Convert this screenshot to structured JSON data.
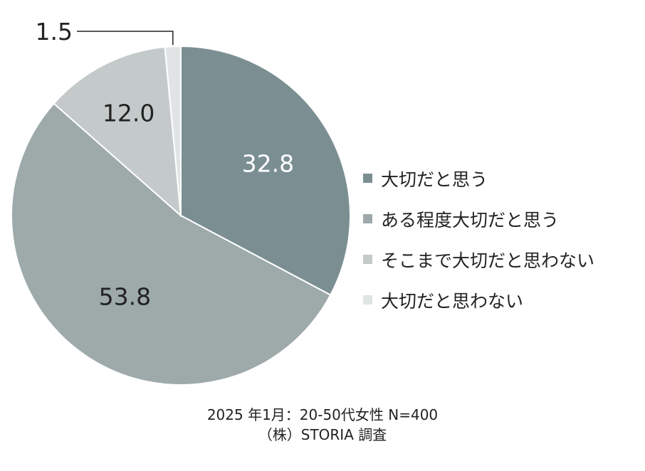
{
  "chart_data": {
    "type": "pie",
    "categories": [
      "大切だと思う",
      "ある程度大切だと思う",
      "そこまで大切だと思わない",
      "大切だと思わない"
    ],
    "values": [
      32.8,
      53.8,
      12.0,
      1.5
    ],
    "value_labels": [
      "32.8",
      "53.8",
      "12.0",
      "1.5"
    ],
    "colors": [
      "#7b8f93",
      "#9ea9aa",
      "#c4caca",
      "#e0e4e4"
    ],
    "label_colors": [
      "#ffffff",
      "#222222",
      "#222222",
      "#222222"
    ],
    "start_angle_deg": 0,
    "direction": "clockwise",
    "legend_position": "right"
  },
  "caption": {
    "line1": "2025 年1月：20-50代女性 N=400",
    "line2": "（株）STORIA 調査"
  }
}
